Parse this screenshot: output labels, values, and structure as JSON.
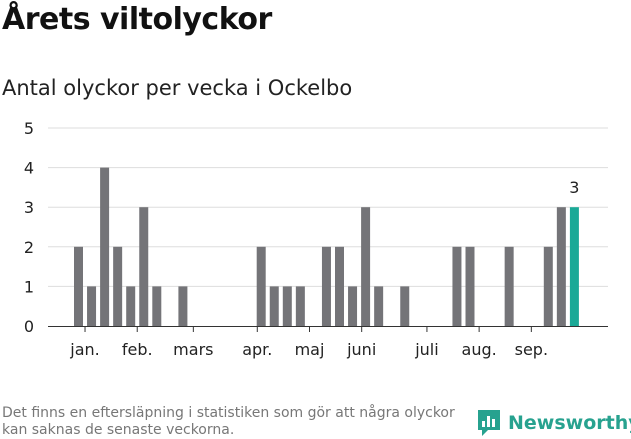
{
  "header": {
    "title": "Årets viltolyckor",
    "subtitle": "Antal olyckor per vecka i Ockelbo"
  },
  "chart_data": {
    "type": "bar",
    "title": "Årets viltolyckor",
    "subtitle": "Antal olyckor per vecka i Ockelbo",
    "xlabel": "",
    "ylabel": "",
    "ylim": [
      0,
      5
    ],
    "yticks": [
      0,
      1,
      2,
      3,
      4,
      5
    ],
    "grid": true,
    "colors": {
      "bar": "#747478",
      "highlight": "#1aa997",
      "grid": "#dddddd",
      "axis": "#333333"
    },
    "weeks": [
      2,
      3,
      4,
      5,
      6,
      7,
      8,
      9,
      10,
      11,
      12,
      13,
      14,
      15,
      16,
      17,
      18,
      19,
      20,
      21,
      22,
      23,
      24,
      25,
      26,
      27,
      28,
      29,
      30,
      31,
      32,
      33,
      34,
      35,
      36,
      37,
      38,
      39,
      40
    ],
    "values": [
      2,
      1,
      4,
      2,
      1,
      3,
      1,
      0,
      1,
      0,
      0,
      0,
      0,
      0,
      2,
      1,
      1,
      1,
      0,
      2,
      2,
      1,
      3,
      1,
      0,
      1,
      0,
      0,
      0,
      2,
      2,
      0,
      0,
      2,
      0,
      0,
      2,
      3,
      3
    ],
    "highlight_index": 38,
    "highlight_label": "3",
    "month_labels": [
      {
        "label": "jan.",
        "week": 2.5
      },
      {
        "label": "feb.",
        "week": 6.5
      },
      {
        "label": "mars",
        "week": 10.8
      },
      {
        "label": "apr.",
        "week": 15.7
      },
      {
        "label": "maj",
        "week": 19.7
      },
      {
        "label": "juni",
        "week": 23.7
      },
      {
        "label": "juli",
        "week": 28.7
      },
      {
        "label": "aug.",
        "week": 32.7
      },
      {
        "label": "sep.",
        "week": 36.7
      }
    ]
  },
  "footer": {
    "note": "Det finns en eftersläpning i statistiken som gör att några olyckor kan saknas de senaste veckorna.",
    "logo_text": "Newsworthy",
    "logo_color": "#27a28f"
  }
}
